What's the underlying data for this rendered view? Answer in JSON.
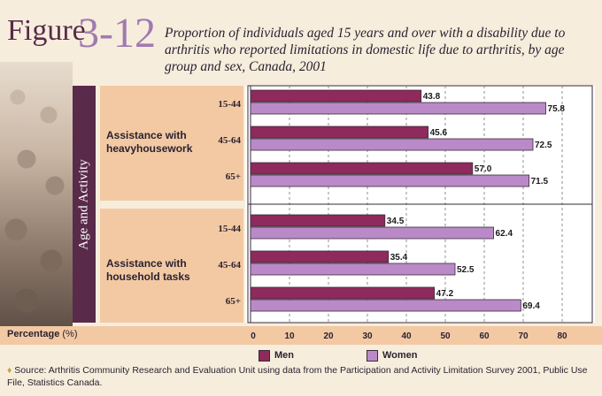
{
  "figure": {
    "word": "Figure",
    "number": "3-12"
  },
  "title": "Proportion of individuals aged 15 years and over with a disability due to arthritis who reported limitations in domestic life due to arthritis, by age group and sex, Canada, 2001",
  "side_label": "Age and Activity",
  "colors": {
    "men": "#8e2a5c",
    "women": "#b98ac7",
    "band": "#f2c9a3",
    "dark": "#5a2a4a"
  },
  "chart_data": {
    "type": "bar",
    "orientation": "horizontal",
    "xlabel": "Percentage (%)",
    "xlim": [
      0,
      80
    ],
    "xticks": [
      0,
      10,
      20,
      30,
      40,
      50,
      60,
      70,
      80
    ],
    "groups": [
      {
        "label": "Assistance with heavyhousework",
        "categories": [
          "15-44",
          "45-64",
          "65+"
        ],
        "series": [
          {
            "name": "Men",
            "values": [
              43.8,
              45.6,
              57.0
            ]
          },
          {
            "name": "Women",
            "values": [
              75.8,
              72.5,
              71.5
            ]
          }
        ]
      },
      {
        "label": "Assistance with household tasks",
        "categories": [
          "15-44",
          "45-64",
          "65+"
        ],
        "series": [
          {
            "name": "Men",
            "values": [
              34.5,
              35.4,
              47.2
            ]
          },
          {
            "name": "Women",
            "values": [
              62.4,
              52.5,
              69.4
            ]
          }
        ]
      }
    ],
    "value_labels": [
      [
        "43.8",
        "75.8",
        "45.6",
        "72.5",
        "57.0",
        "71.5"
      ],
      [
        "34.5",
        "62.4",
        "35.4",
        "52.5",
        "47.2",
        "69.4"
      ]
    ],
    "legend": [
      "Men",
      "Women"
    ],
    "legend_position": "bottom"
  },
  "pct_label": {
    "main": "Percentage",
    "unit": "(%)"
  },
  "source": "Source: Arthritis Community Research and Evaluation Unit using data from the Participation and Activity Limitation Survey 2001, Public Use File, Statistics Canada."
}
